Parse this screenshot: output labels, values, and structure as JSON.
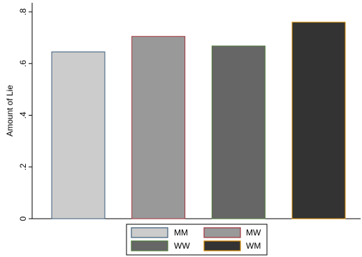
{
  "chart_data": {
    "type": "bar",
    "title": "",
    "xlabel": "",
    "ylabel": "Amount of Lie",
    "ylim": [
      0,
      0.8
    ],
    "y_ticks": [
      {
        "value": 0,
        "label": "0"
      },
      {
        "value": 0.2,
        "label": ".2"
      },
      {
        "value": 0.4,
        "label": ".4"
      },
      {
        "value": 0.6,
        "label": ".6"
      },
      {
        "value": 0.8,
        "label": ".8"
      }
    ],
    "grid": false,
    "legend_position": "bottom",
    "series": [
      {
        "name": "MM",
        "value": 0.645,
        "fill": "#cccccc",
        "stroke": "#3a5a78"
      },
      {
        "name": "MW",
        "value": 0.705,
        "fill": "#999999",
        "stroke": "#a0333a"
      },
      {
        "name": "WW",
        "value": 0.668,
        "fill": "#666666",
        "stroke": "#4e7a3a"
      },
      {
        "name": "WM",
        "value": 0.76,
        "fill": "#333333",
        "stroke": "#d58a00"
      }
    ]
  }
}
